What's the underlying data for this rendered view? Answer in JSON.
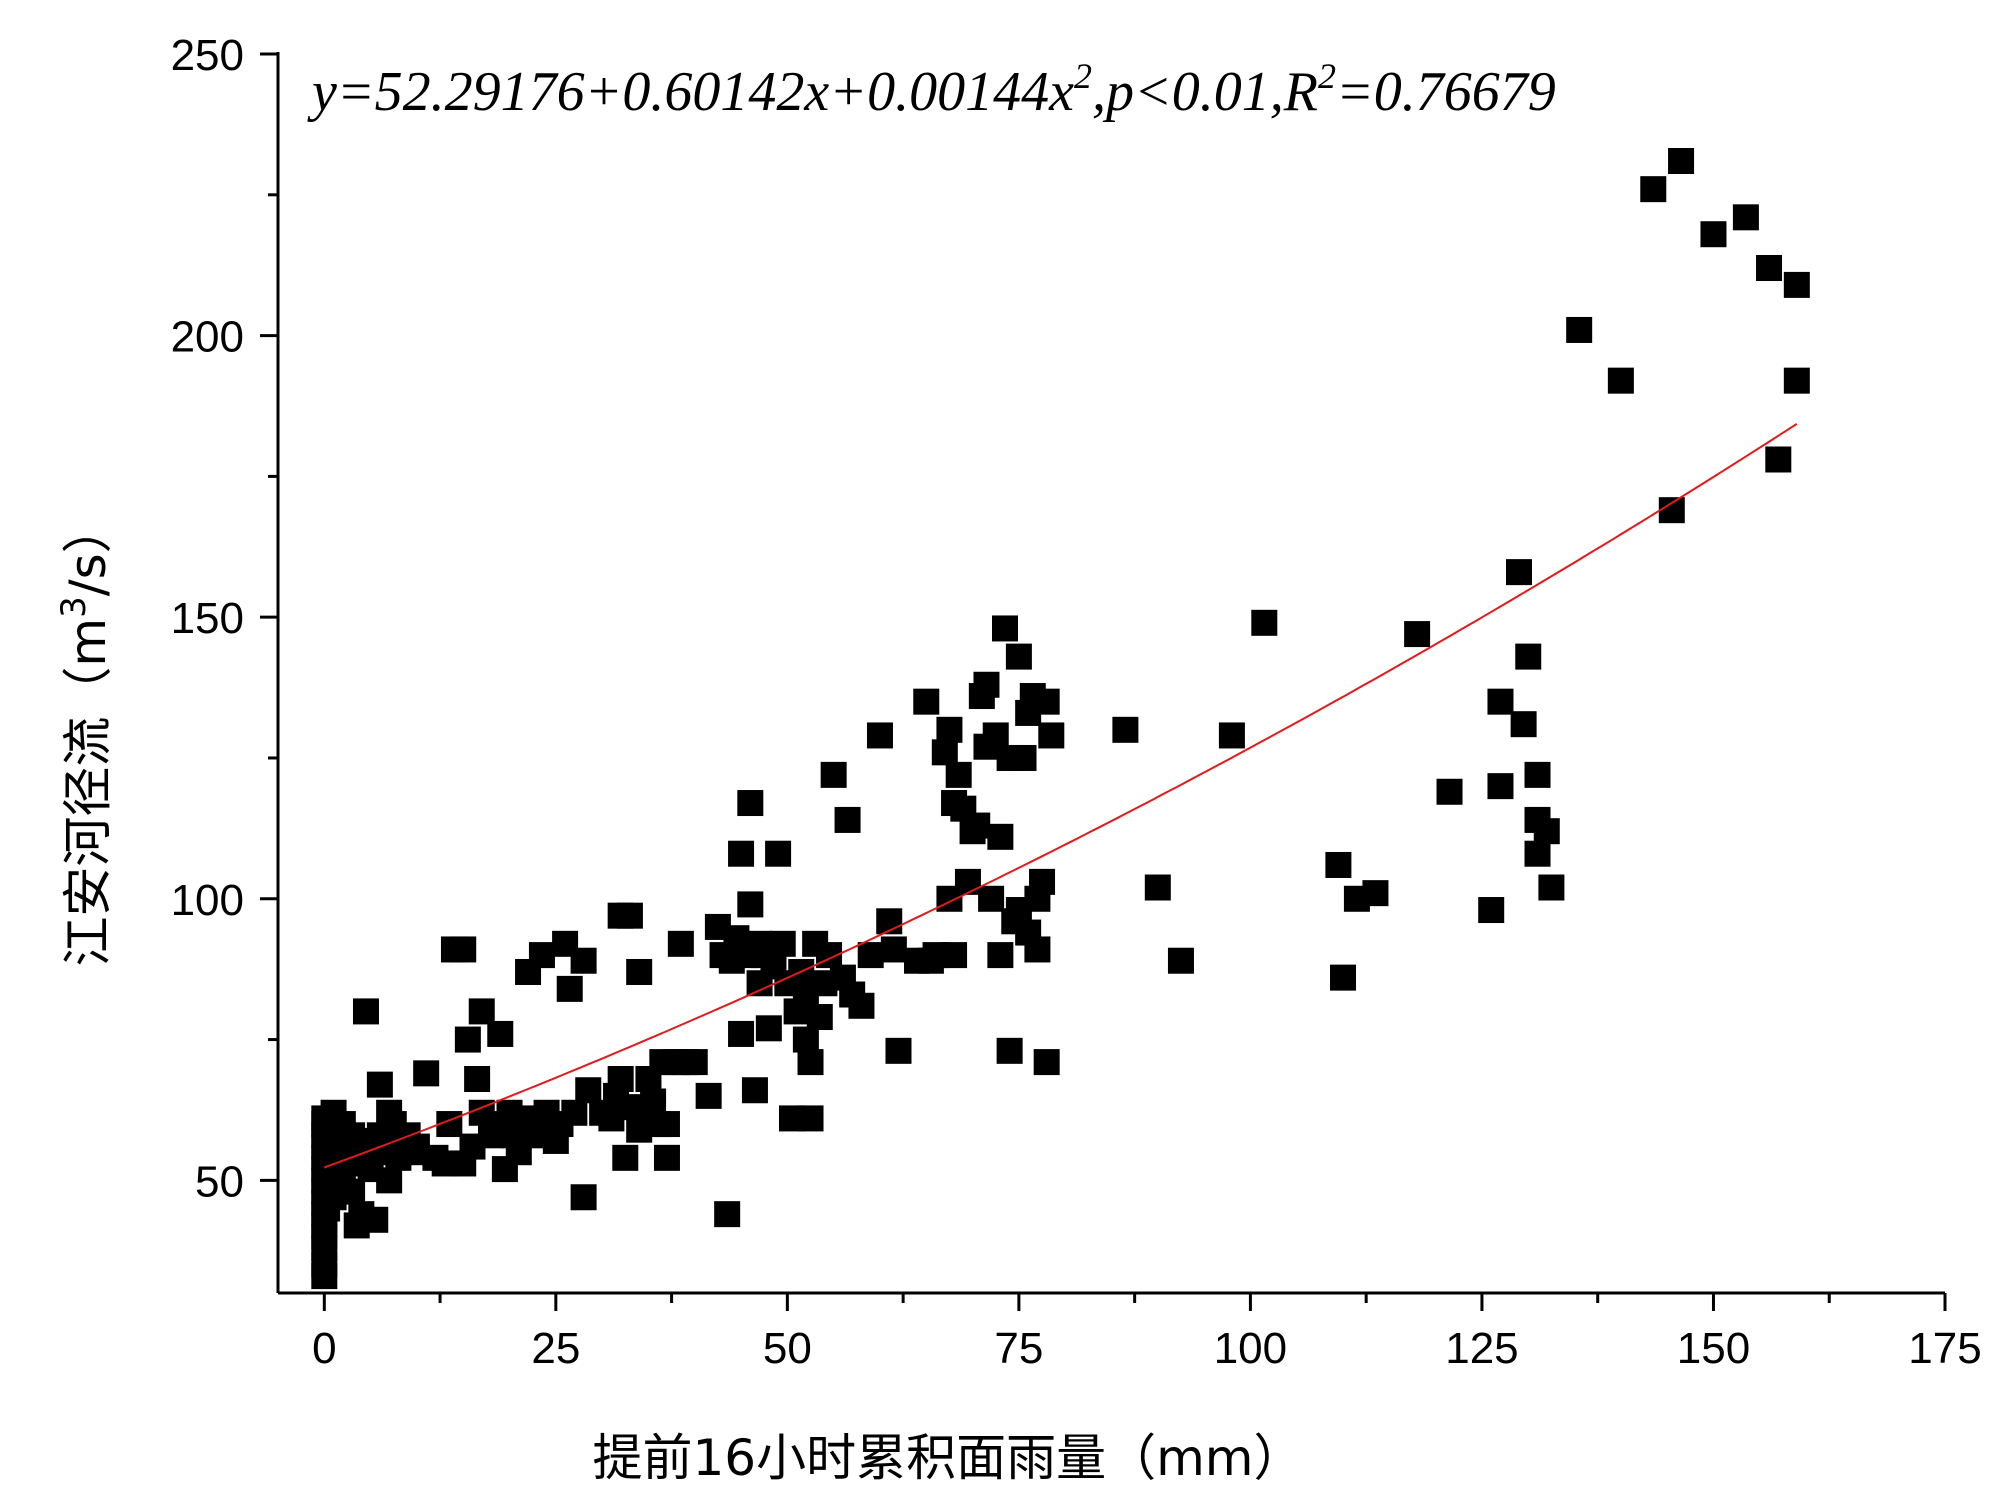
{
  "chart_data": {
    "type": "scatter",
    "title": "",
    "equation": {
      "pre": "y=52.29176+0.60142x+0.00144x",
      "sup1": "2",
      "mid": ",p<0.01,R",
      "sup2": "2",
      "post": "=0.76679"
    },
    "xlabel": "提前16小时累积面雨量（mm）",
    "ylabel_pre": "江安河径流（m",
    "ylabel_sup": "3",
    "ylabel_post": "/s）",
    "xlim": [
      -5,
      175
    ],
    "ylim": [
      30,
      250
    ],
    "xticks": [
      "0",
      "25",
      "50",
      "75",
      "100",
      "125",
      "150",
      "175"
    ],
    "yticks": [
      "50",
      "100",
      "150",
      "200",
      "250"
    ],
    "grid": false,
    "legend": "none",
    "colors": {
      "points": "#000000",
      "fit": "#e31a1c",
      "axes": "#000000"
    },
    "fit": {
      "type": "polynomial",
      "coefficients": [
        52.29176,
        0.60142,
        0.00144
      ],
      "x_range": [
        0,
        159
      ]
    },
    "points": [
      [
        0,
        33
      ],
      [
        0,
        35
      ],
      [
        0,
        38
      ],
      [
        0,
        40
      ],
      [
        0,
        42
      ],
      [
        0,
        44
      ],
      [
        0,
        46
      ],
      [
        0,
        48
      ],
      [
        0,
        50
      ],
      [
        0,
        52
      ],
      [
        0,
        54
      ],
      [
        0,
        56
      ],
      [
        0,
        58
      ],
      [
        0,
        60
      ],
      [
        0,
        61
      ],
      [
        0.3,
        45
      ],
      [
        0.3,
        53
      ],
      [
        0.5,
        57
      ],
      [
        0.5,
        49
      ],
      [
        0.8,
        51
      ],
      [
        1,
        62
      ],
      [
        1,
        55
      ],
      [
        1,
        47
      ],
      [
        1.5,
        58
      ],
      [
        1.5,
        53
      ],
      [
        2,
        56
      ],
      [
        2,
        50
      ],
      [
        2,
        60
      ],
      [
        2.5,
        55
      ],
      [
        3,
        53
      ],
      [
        3,
        58
      ],
      [
        3,
        48
      ],
      [
        3.5,
        42
      ],
      [
        4,
        57
      ],
      [
        4,
        44
      ],
      [
        4.5,
        80
      ],
      [
        5,
        55
      ],
      [
        5,
        52
      ],
      [
        5.5,
        43
      ],
      [
        6,
        67
      ],
      [
        6,
        58
      ],
      [
        6.5,
        55
      ],
      [
        7,
        62
      ],
      [
        7,
        50
      ],
      [
        7.5,
        60
      ],
      [
        8,
        54
      ],
      [
        8.5,
        57
      ],
      [
        9,
        58
      ],
      [
        9.5,
        55
      ],
      [
        10,
        56
      ],
      [
        11,
        69
      ],
      [
        12,
        54
      ],
      [
        13,
        53
      ],
      [
        13.5,
        60
      ],
      [
        14,
        91
      ],
      [
        15,
        91
      ],
      [
        15,
        53
      ],
      [
        15.5,
        75
      ],
      [
        16,
        56
      ],
      [
        16.5,
        68
      ],
      [
        17,
        80
      ],
      [
        17,
        62
      ],
      [
        18,
        58
      ],
      [
        18.5,
        60
      ],
      [
        19,
        76
      ],
      [
        19.5,
        52
      ],
      [
        20,
        62
      ],
      [
        20.5,
        58
      ],
      [
        21,
        55
      ],
      [
        22,
        87
      ],
      [
        22,
        61
      ],
      [
        23,
        58
      ],
      [
        23.5,
        90
      ],
      [
        24,
        62
      ],
      [
        25,
        57
      ],
      [
        25.5,
        60
      ],
      [
        26,
        92
      ],
      [
        26.5,
        84
      ],
      [
        27,
        62
      ],
      [
        28,
        89
      ],
      [
        28,
        47
      ],
      [
        28.5,
        66
      ],
      [
        30,
        62
      ],
      [
        31,
        61
      ],
      [
        31.5,
        65
      ],
      [
        32,
        97
      ],
      [
        32,
        68
      ],
      [
        32.5,
        54
      ],
      [
        33,
        97
      ],
      [
        33.5,
        63
      ],
      [
        34,
        87
      ],
      [
        34,
        59
      ],
      [
        35,
        68
      ],
      [
        35.5,
        64
      ],
      [
        36,
        60
      ],
      [
        36.5,
        71
      ],
      [
        37,
        54
      ],
      [
        37,
        60
      ],
      [
        38,
        71
      ],
      [
        38.5,
        92
      ],
      [
        39,
        71
      ],
      [
        40,
        71
      ],
      [
        41.5,
        65
      ],
      [
        42.5,
        95
      ],
      [
        43,
        90
      ],
      [
        43.5,
        44
      ],
      [
        44,
        89
      ],
      [
        44.5,
        93
      ],
      [
        45,
        108
      ],
      [
        45,
        76
      ],
      [
        45.5,
        90
      ],
      [
        46,
        117
      ],
      [
        46,
        99
      ],
      [
        46.5,
        66
      ],
      [
        47,
        92
      ],
      [
        47,
        85
      ],
      [
        47.5,
        90
      ],
      [
        48,
        77
      ],
      [
        48.5,
        88
      ],
      [
        49,
        108
      ],
      [
        49.5,
        92
      ],
      [
        50,
        85
      ],
      [
        50.5,
        61
      ],
      [
        51,
        80
      ],
      [
        51.5,
        87
      ],
      [
        52,
        83
      ],
      [
        52,
        75
      ],
      [
        52.5,
        71
      ],
      [
        52.5,
        61
      ],
      [
        53,
        92
      ],
      [
        53.5,
        79
      ],
      [
        54,
        85
      ],
      [
        54.5,
        90
      ],
      [
        55,
        122
      ],
      [
        56,
        86
      ],
      [
        56.5,
        114
      ],
      [
        57,
        83
      ],
      [
        58,
        81
      ],
      [
        59,
        90
      ],
      [
        60,
        129
      ],
      [
        61,
        96
      ],
      [
        61.5,
        91
      ],
      [
        62,
        73
      ],
      [
        64,
        89
      ],
      [
        65,
        135
      ],
      [
        65.5,
        89
      ],
      [
        66,
        90
      ],
      [
        67,
        126
      ],
      [
        67.5,
        100
      ],
      [
        67.5,
        130
      ],
      [
        68,
        117
      ],
      [
        68,
        90
      ],
      [
        68.5,
        122
      ],
      [
        69,
        116
      ],
      [
        69.5,
        103
      ],
      [
        70,
        112
      ],
      [
        70.5,
        113
      ],
      [
        71,
        136
      ],
      [
        71.5,
        138
      ],
      [
        71.5,
        127
      ],
      [
        72,
        100
      ],
      [
        72.5,
        129
      ],
      [
        73,
        111
      ],
      [
        73,
        90
      ],
      [
        73.5,
        148
      ],
      [
        74,
        125
      ],
      [
        74,
        73
      ],
      [
        74.5,
        96
      ],
      [
        75,
        143
      ],
      [
        75,
        98
      ],
      [
        75.5,
        125
      ],
      [
        76,
        133
      ],
      [
        76,
        94
      ],
      [
        76.5,
        136
      ],
      [
        77,
        91
      ],
      [
        77,
        100
      ],
      [
        77.5,
        103
      ],
      [
        78,
        135
      ],
      [
        78,
        71
      ],
      [
        78.5,
        129
      ],
      [
        86.5,
        130
      ],
      [
        90,
        102
      ],
      [
        92.5,
        89
      ],
      [
        98,
        129
      ],
      [
        101.5,
        149
      ],
      [
        109.5,
        106
      ],
      [
        110,
        86
      ],
      [
        111.5,
        100
      ],
      [
        113.5,
        101
      ],
      [
        118,
        147
      ],
      [
        121.5,
        119
      ],
      [
        126,
        98
      ],
      [
        127,
        135
      ],
      [
        127,
        120
      ],
      [
        129,
        158
      ],
      [
        129.5,
        131
      ],
      [
        130,
        143
      ],
      [
        131,
        122
      ],
      [
        131,
        114
      ],
      [
        131,
        108
      ],
      [
        132,
        112
      ],
      [
        132.5,
        102
      ],
      [
        135.5,
        201
      ],
      [
        140,
        192
      ],
      [
        143.5,
        226
      ],
      [
        145.5,
        169
      ],
      [
        146.5,
        231
      ],
      [
        150,
        218
      ],
      [
        153.5,
        221
      ],
      [
        156,
        212
      ],
      [
        157,
        178
      ],
      [
        159,
        192
      ],
      [
        159,
        209
      ]
    ]
  }
}
